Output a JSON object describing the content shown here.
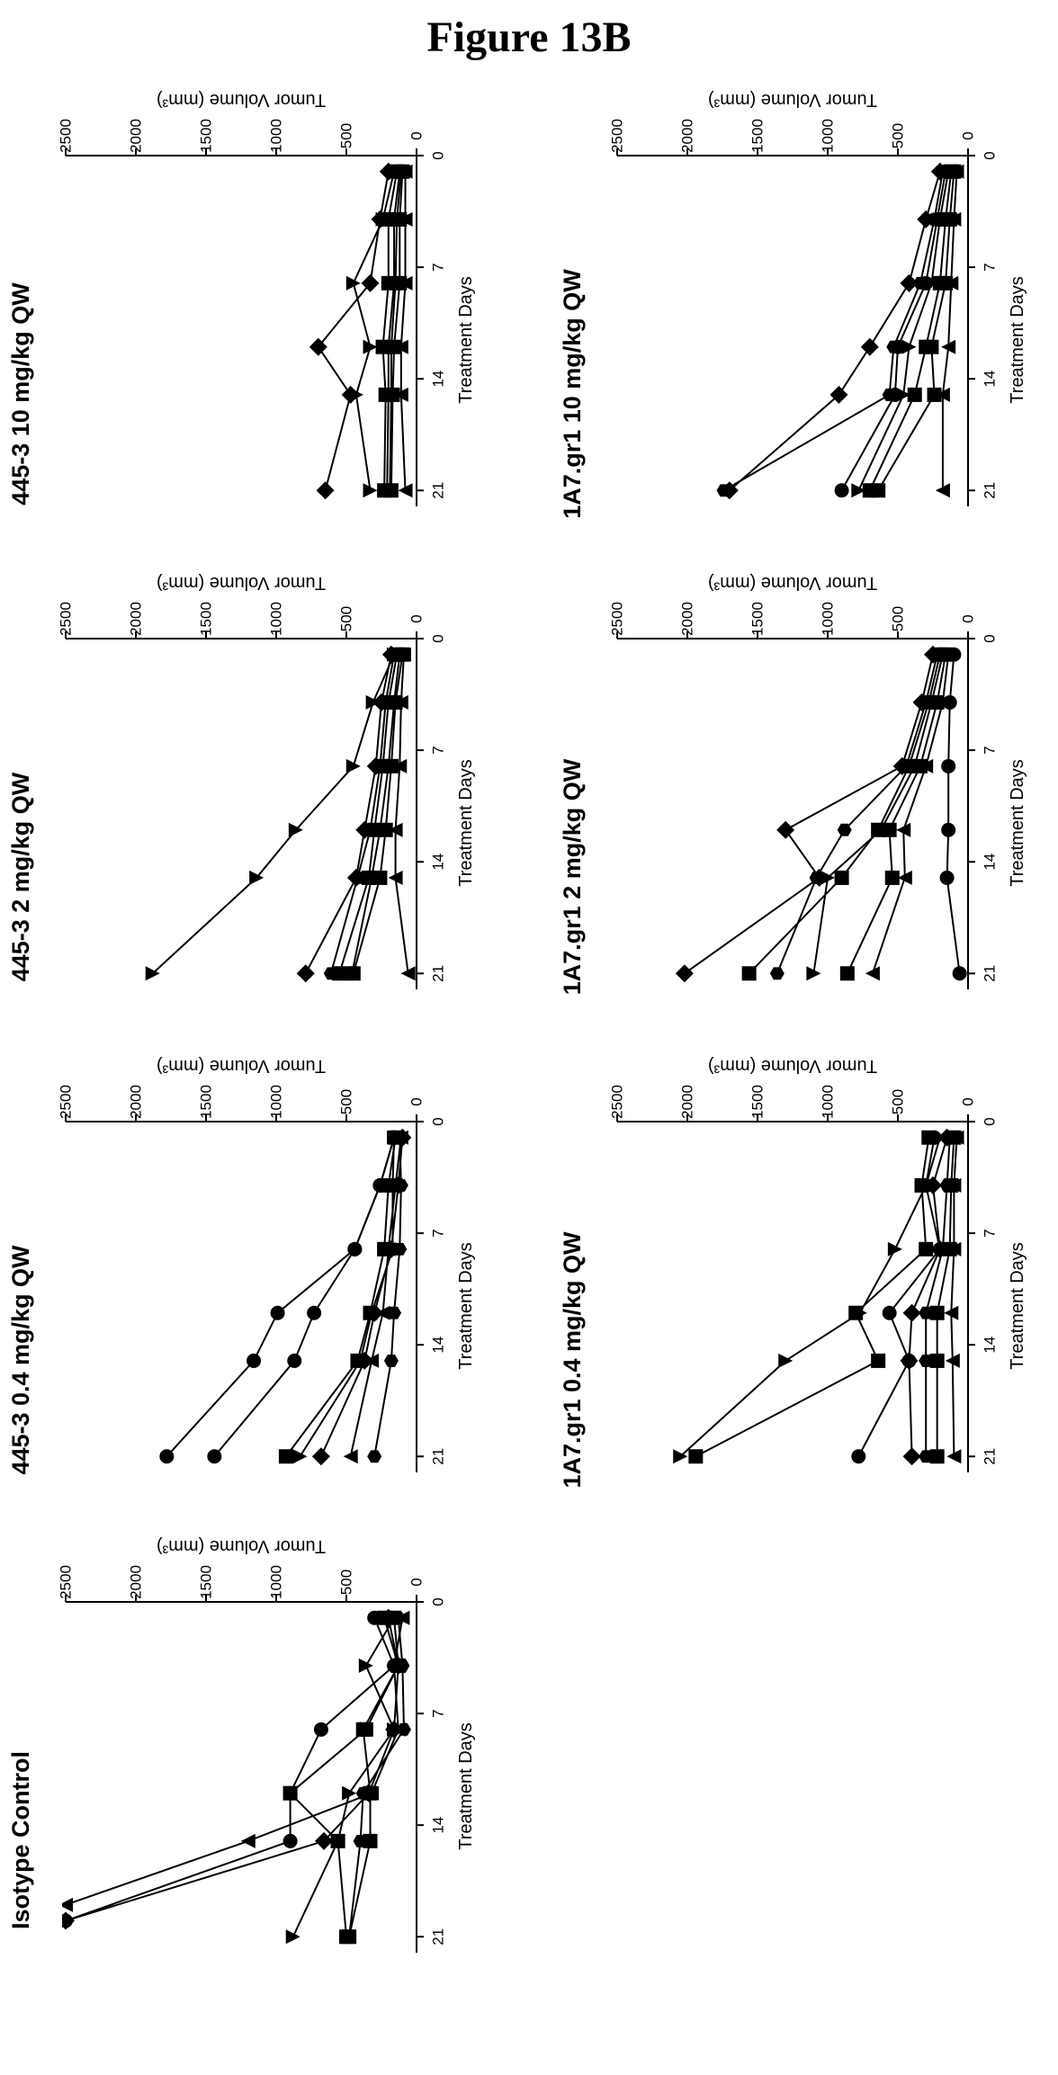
{
  "figure_title": "Figure 13B",
  "chart_data": [
    {
      "type": "line",
      "title": "Isotype Control",
      "xlabel": "Treatment Days",
      "ylabel": "Tumor Volume (mm³)",
      "x_ticks": [
        0,
        7,
        14,
        21
      ],
      "y_ticks": [
        0,
        500,
        1000,
        1500,
        2000,
        2500
      ],
      "xlim": [
        0,
        22
      ],
      "ylim": [
        0,
        2500
      ],
      "series": [
        {
          "marker": "circle",
          "x": [
            1,
            4,
            8,
            12,
            15,
            20
          ],
          "y": [
            300,
            160,
            680,
            900,
            900,
            2500
          ]
        },
        {
          "marker": "square",
          "x": [
            1,
            4,
            8,
            12,
            15,
            21
          ],
          "y": [
            160,
            130,
            380,
            330,
            330,
            480
          ]
        },
        {
          "marker": "triangle",
          "x": [
            1,
            4,
            8,
            12,
            15,
            21
          ],
          "y": [
            160,
            360,
            160,
            480,
            560,
            880
          ]
        },
        {
          "marker": "diamond",
          "x": [
            1,
            4,
            8,
            12,
            15,
            20
          ],
          "y": [
            200,
            130,
            160,
            340,
            660,
            2500
          ]
        },
        {
          "marker": "triangle-down",
          "x": [
            1,
            4,
            8,
            12,
            15,
            19
          ],
          "y": [
            100,
            160,
            130,
            320,
            1200,
            2500
          ]
        },
        {
          "marker": "hexagon",
          "x": [
            1,
            4,
            8,
            12,
            15,
            21
          ],
          "y": [
            130,
            100,
            90,
            380,
            400,
            480
          ]
        },
        {
          "marker": "square",
          "x": [
            1,
            4,
            8,
            12,
            15,
            21
          ],
          "y": [
            230,
            130,
            360,
            900,
            560,
            500
          ]
        }
      ]
    },
    {
      "type": "line",
      "title": "445-3 0.4 mg/kg QW",
      "xlabel": "Treatment Days",
      "ylabel": "Tumor Volume (mm³)",
      "x_ticks": [
        0,
        7,
        14,
        21
      ],
      "y_ticks": [
        0,
        500,
        1000,
        1500,
        2000,
        2500
      ],
      "xlim": [
        0,
        22
      ],
      "ylim": [
        0,
        2500
      ],
      "series": [
        {
          "marker": "circle",
          "x": [
            1,
            4,
            8,
            12,
            15,
            21
          ],
          "y": [
            160,
            260,
            440,
            990,
            1160,
            1780
          ]
        },
        {
          "marker": "circle",
          "x": [
            1,
            4,
            8,
            12,
            15,
            21
          ],
          "y": [
            160,
            260,
            440,
            730,
            870,
            1440
          ]
        },
        {
          "marker": "square",
          "x": [
            1,
            4,
            8,
            12,
            15,
            21
          ],
          "y": [
            150,
            200,
            230,
            330,
            420,
            930
          ]
        },
        {
          "marker": "triangle",
          "x": [
            1,
            4,
            8,
            12,
            15,
            21
          ],
          "y": [
            160,
            170,
            170,
            320,
            400,
            830
          ]
        },
        {
          "marker": "diamond",
          "x": [
            1,
            4,
            8,
            12,
            15,
            21
          ],
          "y": [
            100,
            130,
            180,
            300,
            370,
            680
          ]
        },
        {
          "marker": "triangle-down",
          "x": [
            1,
            4,
            8,
            12,
            15,
            21
          ],
          "y": [
            110,
            150,
            200,
            240,
            320,
            470
          ]
        },
        {
          "marker": "hexagon",
          "x": [
            1,
            4,
            8,
            12,
            15,
            21
          ],
          "y": [
            120,
            110,
            120,
            160,
            180,
            300
          ]
        }
      ]
    },
    {
      "type": "line",
      "title": "445-3 2 mg/kg QW",
      "xlabel": "Treatment Days",
      "ylabel": "Tumor Volume (mm³)",
      "x_ticks": [
        0,
        7,
        14,
        21
      ],
      "y_ticks": [
        0,
        500,
        1000,
        1500,
        2000,
        2500
      ],
      "xlim": [
        0,
        22
      ],
      "ylim": [
        0,
        2500
      ],
      "series": [
        {
          "marker": "triangle",
          "x": [
            1,
            4,
            8,
            12,
            15,
            21
          ],
          "y": [
            160,
            310,
            450,
            860,
            1140,
            1880
          ]
        },
        {
          "marker": "diamond",
          "x": [
            1,
            4,
            8,
            12,
            15,
            21
          ],
          "y": [
            180,
            250,
            290,
            370,
            430,
            790
          ]
        },
        {
          "marker": "hexagon",
          "x": [
            1,
            4,
            8,
            12,
            15,
            21
          ],
          "y": [
            160,
            220,
            260,
            330,
            420,
            610
          ]
        },
        {
          "marker": "square",
          "x": [
            1,
            4,
            8,
            12,
            15,
            21
          ],
          "y": [
            140,
            200,
            240,
            300,
            340,
            550
          ]
        },
        {
          "marker": "circle",
          "x": [
            1,
            4,
            8,
            12,
            15,
            21
          ],
          "y": [
            120,
            160,
            200,
            260,
            320,
            460
          ]
        },
        {
          "marker": "square",
          "x": [
            1,
            4,
            8,
            12,
            15,
            21
          ],
          "y": [
            100,
            150,
            180,
            220,
            260,
            450
          ]
        },
        {
          "marker": "triangle-down",
          "x": [
            1,
            4,
            8,
            12,
            15,
            21
          ],
          "y": [
            90,
            110,
            120,
            150,
            150,
            60
          ]
        }
      ]
    },
    {
      "type": "line",
      "title": "445-3 10 mg/kg QW",
      "xlabel": "Treatment Days",
      "ylabel": "Tumor Volume (mm³)",
      "x_ticks": [
        0,
        7,
        14,
        21
      ],
      "y_ticks": [
        0,
        500,
        1000,
        1500,
        2000,
        2500
      ],
      "xlim": [
        0,
        22
      ],
      "ylim": [
        0,
        2500
      ],
      "series": [
        {
          "marker": "diamond",
          "x": [
            1,
            4,
            8,
            12,
            15,
            21
          ],
          "y": [
            200,
            260,
            330,
            700,
            470,
            650
          ]
        },
        {
          "marker": "triangle",
          "x": [
            1,
            4,
            8,
            12,
            15,
            21
          ],
          "y": [
            160,
            240,
            450,
            330,
            430,
            330
          ]
        },
        {
          "marker": "square",
          "x": [
            1,
            4,
            8,
            12,
            15,
            21
          ],
          "y": [
            140,
            200,
            200,
            240,
            220,
            230
          ]
        },
        {
          "marker": "hexagon",
          "x": [
            1,
            4,
            8,
            12,
            15,
            21
          ],
          "y": [
            120,
            160,
            160,
            200,
            200,
            210
          ]
        },
        {
          "marker": "circle",
          "x": [
            1,
            4,
            8,
            12,
            15,
            21
          ],
          "y": [
            110,
            140,
            150,
            180,
            180,
            190
          ]
        },
        {
          "marker": "square",
          "x": [
            1,
            4,
            8,
            12,
            15,
            21
          ],
          "y": [
            100,
            120,
            120,
            160,
            170,
            180
          ]
        },
        {
          "marker": "triangle-down",
          "x": [
            1,
            4,
            8,
            12,
            15,
            21
          ],
          "y": [
            80,
            80,
            80,
            110,
            110,
            80
          ]
        }
      ]
    },
    {
      "type": "line",
      "title": "1A7.gr1 0.4 mg/kg QW",
      "xlabel": "Treatment Days",
      "ylabel": "Tumor Volume (mm³)",
      "x_ticks": [
        0,
        7,
        14,
        21
      ],
      "y_ticks": [
        0,
        500,
        1000,
        1500,
        2000,
        2500
      ],
      "xlim": [
        0,
        22
      ],
      "ylim": [
        0,
        2500
      ],
      "series": [
        {
          "marker": "triangle",
          "x": [
            1,
            4,
            8,
            12,
            15,
            21
          ],
          "y": [
            200,
            300,
            520,
            770,
            1300,
            2050
          ]
        },
        {
          "marker": "square",
          "x": [
            1,
            4,
            8,
            12,
            15,
            21
          ],
          "y": [
            280,
            330,
            300,
            800,
            640,
            1940
          ]
        },
        {
          "marker": "circle",
          "x": [
            1,
            4,
            8,
            12,
            15,
            21
          ],
          "y": [
            240,
            300,
            200,
            560,
            420,
            780
          ]
        },
        {
          "marker": "diamond",
          "x": [
            1,
            4,
            8,
            12,
            15,
            21
          ],
          "y": [
            150,
            250,
            200,
            400,
            420,
            400
          ]
        },
        {
          "marker": "hexagon",
          "x": [
            1,
            4,
            8,
            12,
            15,
            21
          ],
          "y": [
            130,
            150,
            180,
            300,
            300,
            300
          ]
        },
        {
          "marker": "square",
          "x": [
            1,
            4,
            8,
            12,
            15,
            21
          ],
          "y": [
            100,
            120,
            130,
            220,
            220,
            220
          ]
        },
        {
          "marker": "triangle-down",
          "x": [
            1,
            4,
            8,
            12,
            15,
            21
          ],
          "y": [
            80,
            100,
            100,
            120,
            110,
            100
          ]
        }
      ]
    },
    {
      "type": "line",
      "title": "1A7.gr1 2 mg/kg QW",
      "xlabel": "Treatment Days",
      "ylabel": "Tumor Volume (mm³)",
      "x_ticks": [
        0,
        7,
        14,
        21
      ],
      "y_ticks": [
        0,
        500,
        1000,
        1500,
        2000,
        2500
      ],
      "xlim": [
        0,
        22
      ],
      "ylim": [
        0,
        2500
      ],
      "series": [
        {
          "marker": "diamond",
          "x": [
            1,
            4,
            8,
            12,
            15,
            21
          ],
          "y": [
            250,
            330,
            470,
            1300,
            1060,
            2020
          ]
        },
        {
          "marker": "square",
          "x": [
            1,
            4,
            8,
            12,
            15,
            21
          ],
          "y": [
            200,
            280,
            420,
            640,
            900,
            1560
          ]
        },
        {
          "marker": "hexagon",
          "x": [
            1,
            4,
            8,
            12,
            15,
            21
          ],
          "y": [
            220,
            300,
            440,
            880,
            1080,
            1360
          ]
        },
        {
          "marker": "triangle",
          "x": [
            1,
            4,
            8,
            12,
            15,
            21
          ],
          "y": [
            180,
            260,
            380,
            620,
            1000,
            1100
          ]
        },
        {
          "marker": "square",
          "x": [
            1,
            4,
            8,
            12,
            15,
            21
          ],
          "y": [
            160,
            220,
            340,
            560,
            540,
            860
          ]
        },
        {
          "marker": "triangle-down",
          "x": [
            1,
            4,
            8,
            12,
            15,
            21
          ],
          "y": [
            140,
            180,
            300,
            460,
            450,
            680
          ]
        },
        {
          "marker": "circle",
          "x": [
            1,
            4,
            8,
            12,
            15,
            21
          ],
          "y": [
            100,
            130,
            140,
            140,
            150,
            60
          ]
        }
      ]
    },
    {
      "type": "line",
      "title": "1A7.gr1 10 mg/kg QW",
      "xlabel": "Treatment Days",
      "ylabel": "Tumor Volume (mm³)",
      "x_ticks": [
        0,
        7,
        14,
        21
      ],
      "y_ticks": [
        0,
        500,
        1000,
        1500,
        2000,
        2500
      ],
      "xlim": [
        0,
        22
      ],
      "ylim": [
        0,
        2500
      ],
      "series": [
        {
          "marker": "diamond",
          "x": [
            1,
            4,
            8,
            12,
            15,
            21
          ],
          "y": [
            200,
            300,
            420,
            700,
            920,
            1700
          ]
        },
        {
          "marker": "hexagon",
          "x": [
            1,
            4,
            8,
            12,
            15,
            21
          ],
          "y": [
            180,
            240,
            340,
            530,
            560,
            1740
          ]
        },
        {
          "marker": "circle",
          "x": [
            1,
            4,
            8,
            12,
            15,
            21
          ],
          "y": [
            160,
            220,
            300,
            500,
            520,
            900
          ]
        },
        {
          "marker": "triangle",
          "x": [
            1,
            4,
            8,
            12,
            15,
            21
          ],
          "y": [
            140,
            200,
            260,
            420,
            460,
            780
          ]
        },
        {
          "marker": "square",
          "x": [
            1,
            4,
            8,
            12,
            15,
            21
          ],
          "y": [
            120,
            160,
            200,
            300,
            380,
            700
          ]
        },
        {
          "marker": "square",
          "x": [
            1,
            4,
            8,
            12,
            15,
            21
          ],
          "y": [
            100,
            130,
            160,
            260,
            240,
            640
          ]
        },
        {
          "marker": "triangle-down",
          "x": [
            1,
            4,
            8,
            12,
            15,
            21
          ],
          "y": [
            80,
            100,
            120,
            140,
            180,
            180
          ]
        }
      ]
    }
  ]
}
